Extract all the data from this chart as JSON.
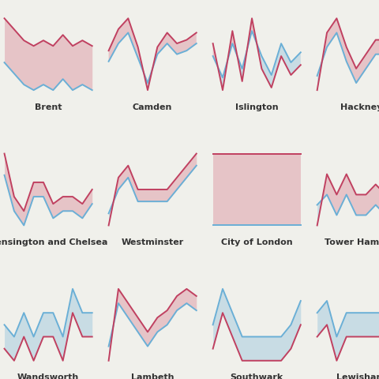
{
  "background_color": "#f0f0eb",
  "panel_color": "#f0f0eb",
  "grid_color": "#e2e2dc",
  "line1_color": "#6aafd6",
  "line2_color": "#c04060",
  "fill_color1": "#a8ccdf",
  "fill_color2": "#dfa0aa",
  "fill_alpha": 0.55,
  "line_width": 1.4,
  "label_fontsize": 8,
  "label_color": "#333333",
  "label_fontweight": "bold",
  "groups": [
    "Brent",
    "Camden",
    "Islington",
    "Hackney",
    "Kensington and Chelsea",
    "Westminster",
    "City of London",
    "Tower Hamlets",
    "Wandsworth",
    "Lambeth",
    "Southwark",
    "Lewisham"
  ],
  "ncols": 4,
  "nrows": 3,
  "series1": [
    [
      5.0,
      4.8,
      4.6,
      4.5,
      4.6,
      4.5,
      4.7,
      4.5,
      4.6,
      4.5
    ],
    [
      5.0,
      7.5,
      9.0,
      5.5,
      2.0,
      6.0,
      7.5,
      6.0,
      6.5,
      7.5
    ],
    [
      5.5,
      3.8,
      6.5,
      4.5,
      7.5,
      5.5,
      4.0,
      6.5,
      5.0,
      5.8
    ],
    [
      4.5,
      6.5,
      7.5,
      5.5,
      4.0,
      5.0,
      6.0,
      6.0,
      5.0,
      6.0
    ],
    [
      7.0,
      4.5,
      3.5,
      5.5,
      5.5,
      4.0,
      4.5,
      4.5,
      4.0,
      5.0
    ],
    [
      3.5,
      5.5,
      6.5,
      4.5,
      4.5,
      4.5,
      4.5,
      5.5,
      6.5,
      7.5
    ],
    [
      4.2,
      4.2,
      4.2,
      4.2,
      4.2,
      4.2,
      4.2,
      4.2,
      4.2,
      4.2
    ],
    [
      5.5,
      6.0,
      5.0,
      6.0,
      5.0,
      5.0,
      5.5,
      5.0,
      6.0,
      7.0
    ],
    [
      4.5,
      4.0,
      5.0,
      4.0,
      5.0,
      5.0,
      4.0,
      6.0,
      5.0,
      5.0
    ],
    [
      4.0,
      7.0,
      6.0,
      5.0,
      4.0,
      5.0,
      5.5,
      6.5,
      7.0,
      6.5
    ],
    [
      5.5,
      7.0,
      6.0,
      5.0,
      5.0,
      5.0,
      5.0,
      5.0,
      5.5,
      6.5
    ],
    [
      5.0,
      5.5,
      4.0,
      5.0,
      5.0,
      5.0,
      5.0,
      5.0,
      6.0,
      6.0
    ]
  ],
  "series2": [
    [
      5.8,
      5.6,
      5.4,
      5.3,
      5.4,
      5.3,
      5.5,
      5.3,
      5.4,
      5.3
    ],
    [
      6.5,
      9.5,
      11.0,
      7.0,
      1.0,
      7.0,
      9.0,
      7.5,
      8.0,
      9.0
    ],
    [
      6.5,
      2.8,
      7.5,
      3.5,
      8.5,
      4.5,
      3.0,
      5.5,
      4.0,
      4.8
    ],
    [
      3.5,
      7.5,
      8.5,
      6.5,
      5.0,
      6.0,
      7.0,
      7.0,
      6.0,
      7.0
    ],
    [
      8.5,
      5.5,
      4.5,
      6.5,
      6.5,
      5.0,
      5.5,
      5.5,
      5.0,
      6.0
    ],
    [
      2.5,
      6.5,
      7.5,
      5.5,
      5.5,
      5.5,
      5.5,
      6.5,
      7.5,
      8.5
    ],
    [
      4.5,
      4.5,
      4.5,
      4.5,
      4.5,
      4.5,
      4.5,
      4.5,
      4.5,
      4.5
    ],
    [
      4.5,
      7.0,
      6.0,
      7.0,
      6.0,
      6.0,
      6.5,
      6.0,
      7.0,
      8.0
    ],
    [
      3.5,
      3.0,
      4.0,
      3.0,
      4.0,
      4.0,
      3.0,
      5.0,
      4.0,
      4.0
    ],
    [
      3.0,
      8.0,
      7.0,
      6.0,
      5.0,
      6.0,
      6.5,
      7.5,
      8.0,
      7.5
    ],
    [
      4.5,
      6.0,
      5.0,
      4.0,
      4.0,
      4.0,
      4.0,
      4.0,
      4.5,
      5.5
    ],
    [
      4.0,
      4.5,
      3.0,
      4.0,
      4.0,
      4.0,
      4.0,
      4.0,
      5.0,
      5.0
    ]
  ]
}
